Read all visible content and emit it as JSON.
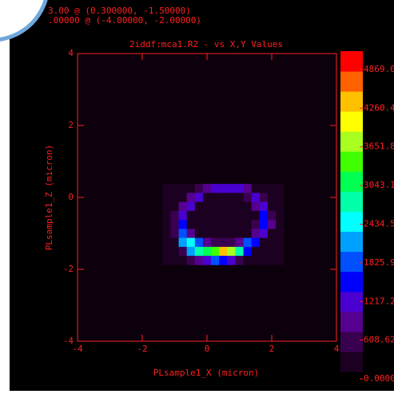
{
  "chart_data": {
    "type": "heatmap",
    "title": "2iddf:mca1.R2  -  vs X,Y Values",
    "annotations": [
      "3.00 @ (0.300000, -1.50000)",
      ".00000 @ (-4.00000, -2.00000)"
    ],
    "x_label": "PLsample1_X (micron)",
    "y_label": "PLsample1_Z (micron)",
    "xlim": [
      -4,
      4
    ],
    "ylim": [
      -4,
      4
    ],
    "xticks": [
      -4,
      -2,
      0,
      2,
      4
    ],
    "yticks": [
      -4,
      -2,
      0,
      2,
      4
    ],
    "x": [
      -1.25,
      -1.0,
      -0.75,
      -0.5,
      -0.25,
      0,
      0.25,
      0.5,
      0.75,
      1.0,
      1.25,
      1.5,
      1.75,
      2.0,
      2.25
    ],
    "y": [
      0.25,
      0.0,
      -0.25,
      -0.5,
      -0.75,
      -1.0,
      -1.25,
      -1.5,
      -1.75
    ],
    "z": [
      [
        0,
        0,
        0,
        100,
        400,
        900,
        1100,
        1100,
        1100,
        1000,
        700,
        300,
        0,
        0,
        0
      ],
      [
        0,
        0,
        200,
        800,
        1100,
        300,
        50,
        50,
        50,
        100,
        600,
        1100,
        500,
        0,
        0
      ],
      [
        0,
        100,
        700,
        1000,
        200,
        20,
        0,
        0,
        0,
        20,
        100,
        900,
        1000,
        200,
        0
      ],
      [
        0,
        500,
        1200,
        300,
        0,
        0,
        0,
        0,
        0,
        0,
        0,
        300,
        1300,
        600,
        0
      ],
      [
        0,
        600,
        1300,
        200,
        0,
        0,
        0,
        0,
        0,
        0,
        0,
        400,
        1400,
        900,
        100
      ],
      [
        0,
        400,
        1800,
        900,
        100,
        0,
        0,
        0,
        0,
        0,
        100,
        900,
        1200,
        300,
        0
      ],
      [
        0,
        200,
        1900,
        2300,
        1700,
        900,
        600,
        500,
        600,
        900,
        1600,
        1500,
        300,
        0,
        0
      ],
      [
        0,
        0,
        600,
        2000,
        2600,
        2900,
        3300,
        4200,
        3400,
        2700,
        1500,
        300,
        0,
        0,
        0
      ],
      [
        0,
        0,
        100,
        400,
        900,
        1200,
        1600,
        1500,
        1200,
        600,
        100,
        0,
        0,
        0,
        0
      ]
    ],
    "zlim": [
      0,
      4869
    ],
    "zticks": [
      {
        "value": 0,
        "label": "0.0000"
      },
      608.62,
      1217.2,
      1825.9,
      2434.5,
      3043.1,
      3651.8,
      4260.4,
      {
        "value": 4869,
        "label": "4869.0"
      }
    ],
    "colors": [
      "#1c0022",
      "#3a0050",
      "#560090",
      "#4a00d0",
      "#0000ff",
      "#0050ff",
      "#00a0ff",
      "#00ffff",
      "#00ffa8",
      "#00ff50",
      "#40ff00",
      "#a8ff20",
      "#ffff00",
      "#ffc000",
      "#ff6000",
      "#ff0000"
    ],
    "axis_color": "#ff2020",
    "background": "#0c000c"
  }
}
